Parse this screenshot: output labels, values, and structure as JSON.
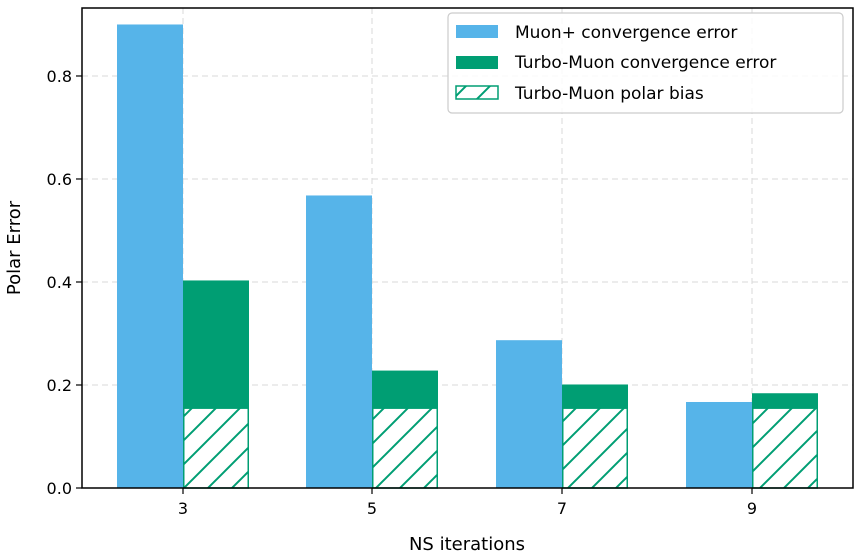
{
  "chart_data": {
    "type": "bar",
    "title": "",
    "xlabel": "NS iterations",
    "ylabel": "Polar Error",
    "categories": [
      "3",
      "5",
      "7",
      "9"
    ],
    "series": [
      {
        "name": "Muon+ convergence error",
        "values": [
          0.9,
          0.568,
          0.287,
          0.167
        ],
        "color": "#56B4E9",
        "style": "solid"
      },
      {
        "name": "Turbo-Muon convergence error",
        "values": [
          0.403,
          0.228,
          0.201,
          0.184
        ],
        "color": "#009E73",
        "style": "solid"
      },
      {
        "name": "Turbo-Muon polar bias",
        "values": [
          0.155,
          0.155,
          0.155,
          0.155
        ],
        "color": "#009E73",
        "style": "hatched",
        "overlay_on": "Turbo-Muon convergence error"
      }
    ],
    "yticks": [
      "0.0",
      "0.2",
      "0.4",
      "0.6",
      "0.8"
    ],
    "ytick_values": [
      0.0,
      0.2,
      0.4,
      0.6,
      0.8
    ],
    "ylim": [
      0,
      0.932
    ],
    "grid": true,
    "grid_style": "dashed",
    "legend_position": "upper right"
  },
  "axes": {
    "xlabel": "NS iterations",
    "ylabel": "Polar Error"
  },
  "legend": {
    "items": [
      {
        "label": "Muon+ convergence error"
      },
      {
        "label": "Turbo-Muon convergence error"
      },
      {
        "label": "Turbo-Muon polar bias"
      }
    ]
  }
}
